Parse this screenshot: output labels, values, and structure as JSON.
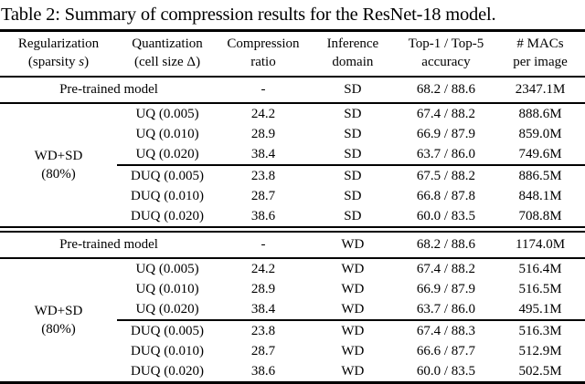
{
  "title": "Table 2: Summary of compression results for the ResNet-18 model.",
  "header": {
    "regularization": {
      "line1": "Regularization",
      "line2_pre": "(sparsity ",
      "line2_italic": "s",
      "line2_post": ")"
    },
    "quantization": {
      "line1": "Quantization",
      "line2": "(cell size Δ)"
    },
    "compression": {
      "line1": "Compression",
      "line2": "ratio"
    },
    "inference": {
      "line1": "Inference",
      "line2": "domain"
    },
    "accuracy": {
      "line1": "Top-1 / Top-5",
      "line2": "accuracy"
    },
    "macs": {
      "line1": "# MACs",
      "line2": "per image"
    }
  },
  "sections": [
    {
      "pretrained": {
        "label": "Pre-trained model",
        "ratio": "-",
        "domain": "SD",
        "acc": "68.2 / 88.6",
        "macs": "2347.1M"
      },
      "group": {
        "line1": "WD+SD",
        "line2": "(80%)"
      },
      "rows": [
        {
          "quant": "UQ (0.005)",
          "ratio": "24.2",
          "domain": "SD",
          "acc": "67.4 / 88.2",
          "macs": "888.6M"
        },
        {
          "quant": "UQ (0.010)",
          "ratio": "28.9",
          "domain": "SD",
          "acc": "66.9 / 87.9",
          "macs": "859.0M"
        },
        {
          "quant": "UQ (0.020)",
          "ratio": "38.4",
          "domain": "SD",
          "acc": "63.7 / 86.0",
          "macs": "749.6M"
        },
        {
          "quant": "DUQ (0.005)",
          "ratio": "23.8",
          "domain": "SD",
          "acc": "67.5 / 88.2",
          "macs": "886.5M"
        },
        {
          "quant": "DUQ (0.010)",
          "ratio": "28.7",
          "domain": "SD",
          "acc": "66.8 / 87.8",
          "macs": "848.1M"
        },
        {
          "quant": "DUQ (0.020)",
          "ratio": "38.6",
          "domain": "SD",
          "acc": "60.0 / 83.5",
          "macs": "708.8M"
        }
      ]
    },
    {
      "pretrained": {
        "label": "Pre-trained model",
        "ratio": "-",
        "domain": "WD",
        "acc": "68.2 / 88.6",
        "macs": "1174.0M"
      },
      "group": {
        "line1": "WD+SD",
        "line2": "(80%)"
      },
      "rows": [
        {
          "quant": "UQ (0.005)",
          "ratio": "24.2",
          "domain": "WD",
          "acc": "67.4 / 88.2",
          "macs": "516.4M"
        },
        {
          "quant": "UQ (0.010)",
          "ratio": "28.9",
          "domain": "WD",
          "acc": "66.9 / 87.9",
          "macs": "516.5M"
        },
        {
          "quant": "UQ (0.020)",
          "ratio": "38.4",
          "domain": "WD",
          "acc": "63.7 / 86.0",
          "macs": "495.1M"
        },
        {
          "quant": "DUQ (0.005)",
          "ratio": "23.8",
          "domain": "WD",
          "acc": "67.4 / 88.3",
          "macs": "516.3M"
        },
        {
          "quant": "DUQ (0.010)",
          "ratio": "28.7",
          "domain": "WD",
          "acc": "66.6 / 87.7",
          "macs": "512.9M"
        },
        {
          "quant": "DUQ (0.020)",
          "ratio": "38.6",
          "domain": "WD",
          "acc": "60.0 / 83.5",
          "macs": "502.5M"
        }
      ]
    }
  ]
}
